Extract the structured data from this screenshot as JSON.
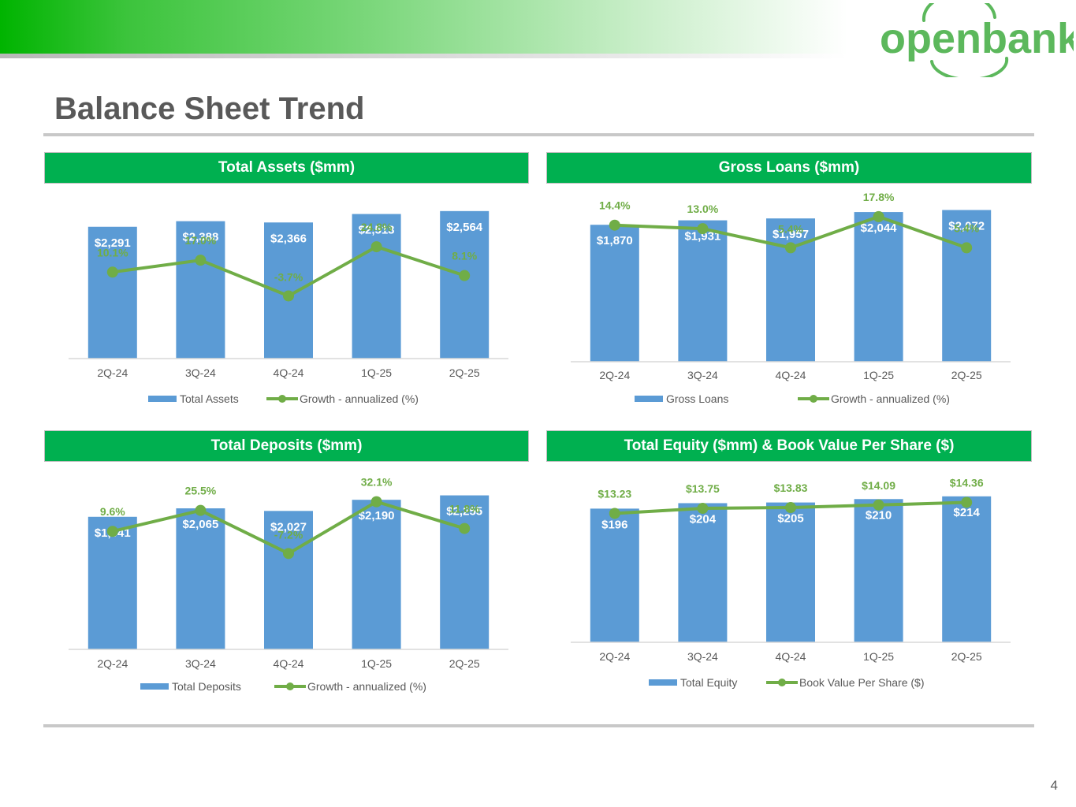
{
  "header": {
    "logo_text": "openbank",
    "title": "Balance Sheet Trend"
  },
  "colors": {
    "bar": "#5b9bd5",
    "line": "#70ad47",
    "header_bg": "#00b050",
    "brand_green": "#5cb85c"
  },
  "panels": [
    {
      "title": "Total Assets ($mm)"
    },
    {
      "title": "Gross Loans ($mm)"
    },
    {
      "title": "Total Deposits ($mm)"
    },
    {
      "title": "Total Equity ($mm) & Book Value Per Share ($)"
    }
  ],
  "chart_data": [
    {
      "type": "bar",
      "title": "Total Assets ($mm)",
      "categories": [
        "2Q-24",
        "3Q-24",
        "4Q-24",
        "1Q-25",
        "2Q-25"
      ],
      "series": [
        {
          "name": "Total Assets",
          "type": "bar",
          "values": [
            2291,
            2388,
            2366,
            2513,
            2564
          ],
          "labels": [
            "$2,291",
            "$2,388",
            "$2,366",
            "$2,513",
            "$2,564"
          ]
        },
        {
          "name": "Growth - annualized (%)",
          "type": "line",
          "values": [
            10.1,
            17.0,
            -3.7,
            24.8,
            8.1
          ],
          "labels": [
            "10.1%",
            "17.0%",
            "-3.7%",
            "24.8%",
            "8.1%"
          ]
        }
      ],
      "bar_ylim": [
        0,
        3000
      ],
      "line_ylim": [
        -40,
        60
      ],
      "legend": [
        "Total Assets",
        "Growth - annualized (%)"
      ]
    },
    {
      "type": "bar",
      "title": "Gross Loans ($mm)",
      "categories": [
        "2Q-24",
        "3Q-24",
        "4Q-24",
        "1Q-25",
        "2Q-25"
      ],
      "series": [
        {
          "name": "Gross Loans",
          "type": "bar",
          "values": [
            1870,
            1931,
            1957,
            2044,
            2072
          ],
          "labels": [
            "$1,870",
            "$1,931",
            "$1,957",
            "$2,044",
            "$2,072"
          ]
        },
        {
          "name": "Growth - annualized (%)",
          "type": "line",
          "values": [
            14.4,
            13.0,
            5.4,
            17.8,
            5.4
          ],
          "labels": [
            "14.4%",
            "13.0%",
            "5.4%",
            "17.8%",
            "5.4%"
          ]
        }
      ],
      "bar_ylim": [
        0,
        2400
      ],
      "line_ylim": [
        -40,
        30
      ],
      "legend": [
        "Gross Loans",
        "Growth - annualized (%)"
      ]
    },
    {
      "type": "bar",
      "title": "Total Deposits ($mm)",
      "categories": [
        "2Q-24",
        "3Q-24",
        "4Q-24",
        "1Q-25",
        "2Q-25"
      ],
      "series": [
        {
          "name": "Total Deposits",
          "type": "bar",
          "values": [
            1941,
            2065,
            2027,
            2190,
            2255
          ],
          "labels": [
            "$1,941",
            "$2,065",
            "$2,027",
            "$2,190",
            "$2,255"
          ]
        },
        {
          "name": "Growth - annualized (%)",
          "type": "line",
          "values": [
            9.6,
            25.5,
            -7.2,
            32.1,
            11.8
          ],
          "labels": [
            "9.6%",
            "25.5%",
            "-7.2%",
            "32.1%",
            "11.8%"
          ]
        }
      ],
      "bar_ylim": [
        0,
        2700
      ],
      "line_ylim": [
        -80,
        60
      ],
      "legend": [
        "Total Deposits",
        "Growth - annualized (%)"
      ]
    },
    {
      "type": "bar",
      "title": "Total Equity ($mm) & Book Value Per Share ($)",
      "categories": [
        "2Q-24",
        "3Q-24",
        "4Q-24",
        "1Q-25",
        "2Q-25"
      ],
      "series": [
        {
          "name": "Total Equity",
          "type": "bar",
          "values": [
            196,
            204,
            205,
            210,
            214
          ],
          "labels": [
            "$196",
            "$204",
            "$205",
            "$210",
            "$214"
          ]
        },
        {
          "name": "Book Value Per Share ($)",
          "type": "line",
          "values": [
            13.23,
            13.75,
            13.83,
            14.09,
            14.36
          ],
          "labels": [
            "$13.23",
            "$13.75",
            "$13.83",
            "$14.09",
            "$14.36"
          ]
        }
      ],
      "bar_ylim": [
        0,
        260
      ],
      "line_ylim": [
        0,
        18.2
      ],
      "legend": [
        "Total Equity",
        "Book Value Per Share ($)"
      ]
    }
  ],
  "footer": {
    "page_number": "4"
  }
}
